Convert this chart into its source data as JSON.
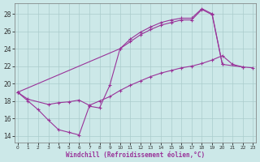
{
  "xlabel": "Windchill (Refroidissement éolien,°C)",
  "bg_color": "#cce8e8",
  "grid_color": "#aacccc",
  "line_color": "#993399",
  "xlim": [
    -0.3,
    23.3
  ],
  "ylim": [
    13.2,
    29.2
  ],
  "xticks": [
    0,
    1,
    2,
    3,
    4,
    5,
    6,
    7,
    8,
    9,
    10,
    11,
    12,
    13,
    14,
    15,
    16,
    17,
    18,
    19,
    20,
    21,
    22,
    23
  ],
  "yticks": [
    14,
    16,
    18,
    20,
    22,
    24,
    26,
    28
  ],
  "curve1_x": [
    0,
    1,
    2,
    3,
    4,
    5,
    6,
    7,
    8,
    9,
    10,
    11,
    12,
    13,
    14,
    15,
    16,
    17,
    18,
    19,
    20
  ],
  "curve1_y": [
    19.0,
    18.0,
    17.0,
    15.8,
    14.7,
    14.4,
    14.1,
    17.4,
    17.2,
    19.8,
    24.0,
    25.1,
    25.9,
    26.5,
    27.0,
    27.3,
    27.5,
    27.5,
    28.6,
    28.0,
    22.2
  ],
  "curve2_x": [
    0,
    10,
    11,
    12,
    13,
    14,
    15,
    16,
    17,
    18,
    19,
    20,
    22
  ],
  "curve2_y": [
    19.0,
    24.0,
    24.8,
    25.6,
    26.2,
    26.7,
    27.0,
    27.3,
    27.3,
    28.5,
    27.9,
    22.2,
    21.9
  ],
  "curve3_x": [
    0,
    1,
    3,
    4,
    5,
    6,
    7,
    8,
    9,
    10,
    11,
    12,
    13,
    14,
    15,
    16,
    17,
    18,
    19,
    20,
    21,
    22,
    23
  ],
  "curve3_y": [
    19.0,
    18.2,
    17.6,
    17.8,
    17.9,
    18.1,
    17.5,
    18.0,
    18.5,
    19.2,
    19.8,
    20.3,
    20.8,
    21.2,
    21.5,
    21.8,
    22.0,
    22.3,
    22.7,
    23.2,
    22.2,
    21.9,
    21.8
  ]
}
